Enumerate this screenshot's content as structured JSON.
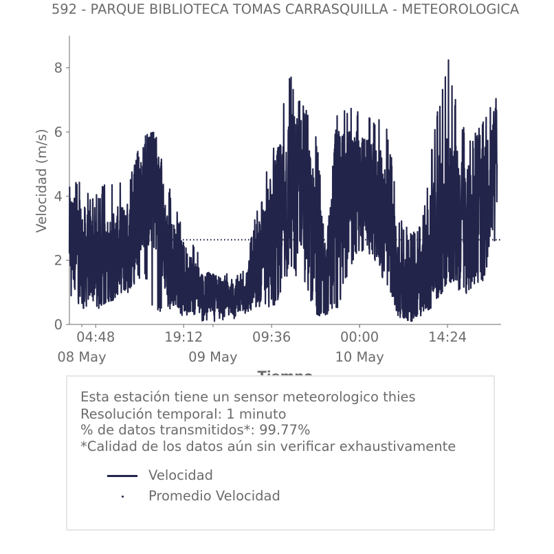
{
  "chart_data": {
    "type": "line",
    "title": "592 - PARQUE BIBLIOTECA TOMAS CARRASQUILLA - METEOROLOGICA",
    "xlabel": "Tiempo",
    "ylabel": "Velocidad (m/s)",
    "ylim": [
      0,
      9
    ],
    "xlim": [
      "2024-05-08 00:30",
      "2024-05-10 23:10"
    ],
    "yticks": [
      0,
      2,
      4,
      6,
      8
    ],
    "xticks": [
      {
        "x": "2024-05-08 04:48",
        "label": "04:48"
      },
      {
        "x": "2024-05-08 19:12",
        "label": "19:12"
      },
      {
        "x": "2024-05-09 09:36",
        "label": "09:36"
      },
      {
        "x": "2024-05-10 00:00",
        "label": "00:00"
      },
      {
        "x": "2024-05-10 14:24",
        "label": "14:24"
      }
    ],
    "date_labels": [
      {
        "x": "2024-05-08 00:00",
        "label": "08 May"
      },
      {
        "x": "2024-05-09 00:00",
        "label": "09 May"
      },
      {
        "x": "2024-05-10 00:00",
        "label": "10 May"
      }
    ],
    "grid": false,
    "series": [
      {
        "name": "Velocidad",
        "style": "line",
        "color": "#22244a",
        "x": [
          "2024-05-08 00:30",
          "2024-05-08 02:30",
          "2024-05-08 04:30",
          "2024-05-08 06:30",
          "2024-05-08 08:30",
          "2024-05-08 10:30",
          "2024-05-08 12:30",
          "2024-05-08 14:30",
          "2024-05-08 16:30",
          "2024-05-08 18:30",
          "2024-05-08 20:30",
          "2024-05-08 22:30",
          "2024-05-09 00:30",
          "2024-05-09 02:30",
          "2024-05-09 04:30",
          "2024-05-09 06:30",
          "2024-05-09 08:30",
          "2024-05-09 10:30",
          "2024-05-09 12:30",
          "2024-05-09 14:30",
          "2024-05-09 16:30",
          "2024-05-09 18:30",
          "2024-05-09 20:30",
          "2024-05-09 22:30",
          "2024-05-10 00:30",
          "2024-05-10 02:30",
          "2024-05-10 04:30",
          "2024-05-10 06:30",
          "2024-05-10 08:30",
          "2024-05-10 10:30",
          "2024-05-10 12:30",
          "2024-05-10 14:30",
          "2024-05-10 16:30",
          "2024-05-10 18:30",
          "2024-05-10 20:30",
          "2024-05-10 22:30"
        ],
        "y": [
          2.8,
          2.3,
          2.0,
          1.8,
          2.3,
          2.5,
          4.0,
          4.3,
          2.2,
          1.6,
          1.3,
          1.0,
          1.0,
          0.8,
          0.9,
          1.3,
          2.5,
          3.3,
          4.3,
          4.4,
          2.6,
          1.4,
          3.7,
          4.2,
          4.3,
          3.9,
          3.3,
          1.2,
          1.0,
          1.6,
          2.8,
          3.6,
          3.3,
          3.0,
          3.7,
          5.0
        ],
        "min": [
          0.8,
          0.5,
          0.3,
          0.7,
          0.8,
          1.0,
          1.6,
          0.3,
          0.5,
          0.3,
          0.2,
          0.1,
          0.1,
          0.1,
          0.2,
          0.5,
          0.5,
          0.6,
          1.7,
          1.3,
          0.4,
          0.1,
          0.5,
          1.8,
          2.3,
          2.0,
          1.0,
          0.2,
          0.1,
          0.3,
          0.6,
          1.4,
          1.0,
          0.9,
          1.3,
          2.6
        ],
        "max": [
          4.8,
          4.5,
          4.0,
          4.5,
          4.5,
          4.7,
          5.9,
          6.0,
          4.5,
          3.3,
          2.7,
          1.8,
          1.7,
          1.6,
          1.6,
          3.0,
          4.5,
          6.3,
          8.0,
          7.0,
          6.4,
          3.4,
          6.8,
          7.0,
          6.6,
          6.5,
          6.2,
          3.5,
          2.8,
          3.5,
          6.6,
          8.3,
          6.3,
          5.8,
          6.5,
          7.1
        ]
      },
      {
        "name": "Promedio Velocidad",
        "style": "dotted",
        "color": "#22244a",
        "value": 2.64
      }
    ]
  },
  "info": {
    "lines": [
      "Esta estación tiene un sensor meteorologico thies",
      "Resolución temporal: 1 minuto",
      "% de datos transmitidos*: 99.77%",
      "*Calidad de los datos aún sin verificar exhaustivamente"
    ],
    "legend": [
      "Velocidad",
      "Promedio Velocidad"
    ]
  }
}
